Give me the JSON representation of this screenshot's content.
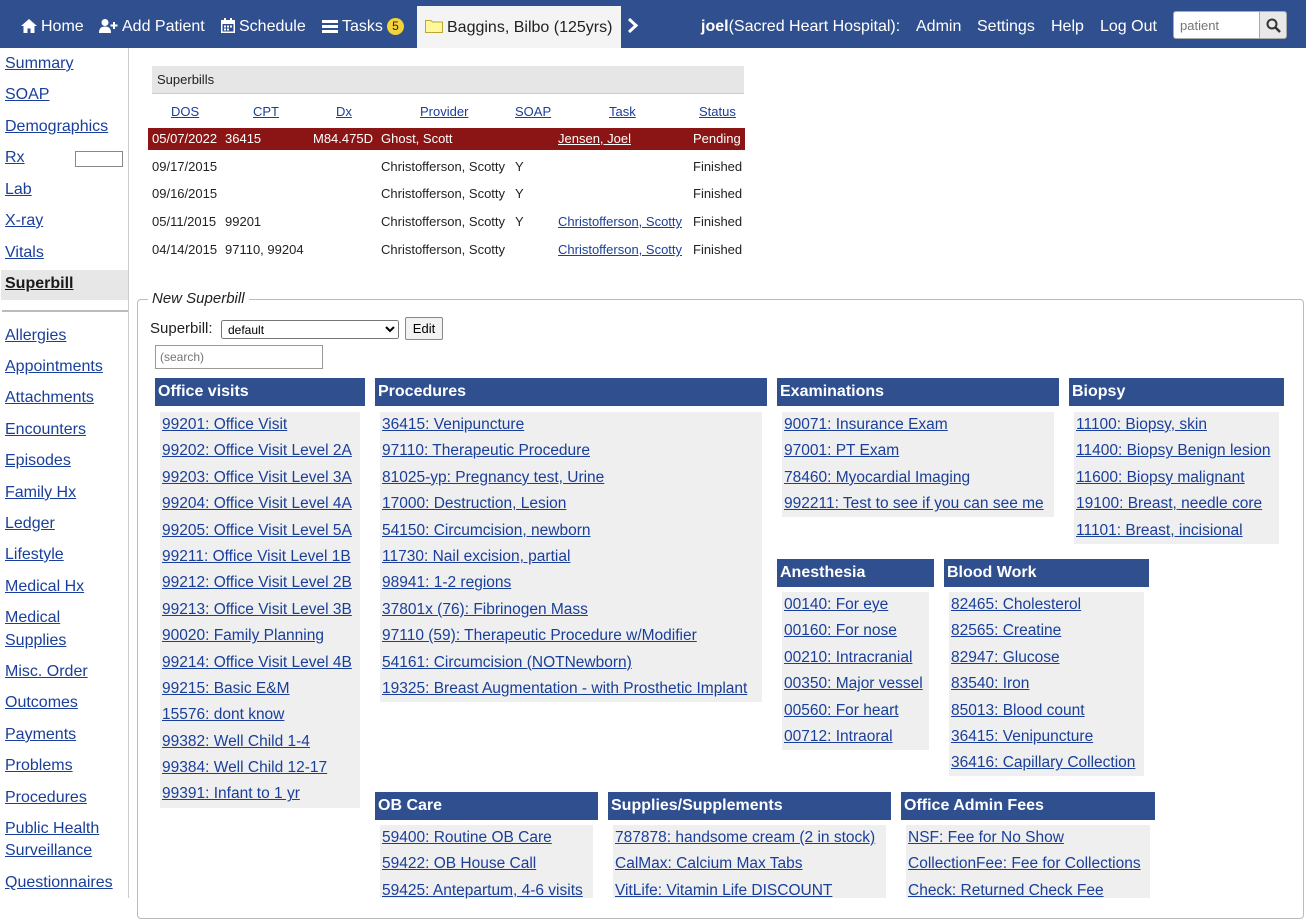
{
  "nav": {
    "home": "Home",
    "add_patient": "Add Patient",
    "schedule": "Schedule",
    "tasks": "Tasks",
    "tasks_count": "5",
    "patient_tab": "Baggins, Bilbo (125yrs)",
    "user_name": "joel",
    "user_org": "(Sacred Heart Hospital):",
    "admin": "Admin",
    "settings": "Settings",
    "help": "Help",
    "logout": "Log Out",
    "search_placeholder": "patient"
  },
  "sidebar": {
    "items": [
      "Summary",
      "SOAP",
      "Demographics",
      "Rx",
      "Lab",
      "X-ray",
      "Vitals",
      "Superbill"
    ],
    "active": "Superbill",
    "items2": [
      "Allergies",
      "Appointments",
      "Attachments",
      "Encounters",
      "Episodes",
      "Family Hx",
      "Ledger",
      "Lifestyle",
      "Medical Hx",
      "Medical",
      "Supplies",
      "Misc. Order",
      "Outcomes",
      "Payments",
      "Problems",
      "Procedures",
      "Public Health",
      "Surveillance",
      "Questionnaires"
    ]
  },
  "superbills": {
    "title": "Superbills",
    "columns": [
      "DOS",
      "CPT",
      "Dx",
      "Provider",
      "SOAP",
      "Task",
      "Status"
    ],
    "rows": [
      {
        "dos": "05/07/2022",
        "cpt": "36415",
        "dx": "M84.475D",
        "provider": "Ghost, Scott",
        "soap": "",
        "task": "Jensen, Joel",
        "status": "Pending"
      },
      {
        "dos": "09/17/2015",
        "cpt": "",
        "dx": "",
        "provider": "Christofferson, Scotty",
        "soap": "Y",
        "task": "",
        "status": "Finished"
      },
      {
        "dos": "09/16/2015",
        "cpt": "",
        "dx": "",
        "provider": "Christofferson, Scotty",
        "soap": "Y",
        "task": "",
        "status": "Finished"
      },
      {
        "dos": "05/11/2015",
        "cpt": "99201",
        "dx": "",
        "provider": "Christofferson, Scotty",
        "soap": "Y",
        "task": "Christofferson, Scotty",
        "status": "Finished"
      },
      {
        "dos": "04/14/2015",
        "cpt": "97110, 99204",
        "dx": "",
        "provider": "Christofferson, Scotty",
        "soap": "",
        "task": "Christofferson, Scotty",
        "status": "Finished"
      }
    ]
  },
  "new_superbill": {
    "legend": "New Superbill",
    "superbill_label": "Superbill:",
    "selected": "default",
    "edit_label": "Edit",
    "search_placeholder": "(search)"
  },
  "categories": [
    {
      "title": "Office visits",
      "items": [
        "99201: Office Visit",
        "99202: Office Visit Level 2A",
        "99203: Office Visit Level 3A",
        "99204: Office Visit Level 4A",
        "99205: Office Visit Level 5A",
        "99211: Office Visit Level 1B",
        "99212: Office Visit Level 2B",
        "99213: Office Visit Level 3B",
        "90020: Family Planning",
        "99214: Office Visit Level 4B",
        "99215: Basic E&M",
        "15576: dont know",
        "99382: Well Child 1-4",
        "99384: Well Child 12-17",
        "99391: Infant to 1 yr"
      ]
    },
    {
      "title": "Procedures",
      "items": [
        "36415: Venipuncture",
        "97110: Therapeutic Procedure",
        "81025-yp: Pregnancy test, Urine",
        "17000: Destruction, Lesion",
        "54150: Circumcision, newborn",
        "11730: Nail excision, partial",
        "98941: 1-2 regions",
        "37801x (76): Fibrinogen Mass",
        "97110 (59): Therapeutic Procedure w/Modifier",
        "54161: Circumcision (NOTNewborn)",
        "19325: Breast Augmentation - with Prosthetic Implant"
      ]
    },
    {
      "title": "Examinations",
      "items": [
        "90071: Insurance Exam",
        "97001: PT Exam",
        "78460: Myocardial Imaging",
        "992211: Test to see if you can see me"
      ]
    },
    {
      "title": "Biopsy",
      "items": [
        "11100: Biopsy, skin",
        "11400: Biopsy Benign lesion",
        "11600: Biopsy malignant",
        "19100: Breast, needle core",
        "11101: Breast, incisional"
      ]
    },
    {
      "title": "Anesthesia",
      "items": [
        "00140: For eye",
        "00160: For nose",
        "00210: Intracranial",
        "00350: Major vessel",
        "00560: For heart",
        "00712: Intraoral"
      ]
    },
    {
      "title": "Blood Work",
      "items": [
        "82465: Cholesterol",
        "82565: Creatine",
        "82947: Glucose",
        "83540: Iron",
        "85013: Blood count",
        "36415: Venipuncture",
        "36416: Capillary Collection"
      ]
    },
    {
      "title": "OB Care",
      "items": [
        "59400: Routine OB Care",
        "59422: OB House Call",
        "59425: Antepartum, 4-6 visits"
      ]
    },
    {
      "title": "Supplies/Supplements",
      "items": [
        "787878: handsome cream (2 in stock)",
        "CalMax: Calcium Max Tabs",
        "VitLife: Vitamin Life DISCOUNT"
      ]
    },
    {
      "title": "Office Admin Fees",
      "items": [
        "NSF: Fee for No Show",
        "CollectionFee: Fee for Collections",
        "Check: Returned Check Fee"
      ]
    }
  ],
  "colors": {
    "nav_bg": "#2f4f8f",
    "highlight_row": "#8b1515",
    "badge": "#f3d33b"
  }
}
